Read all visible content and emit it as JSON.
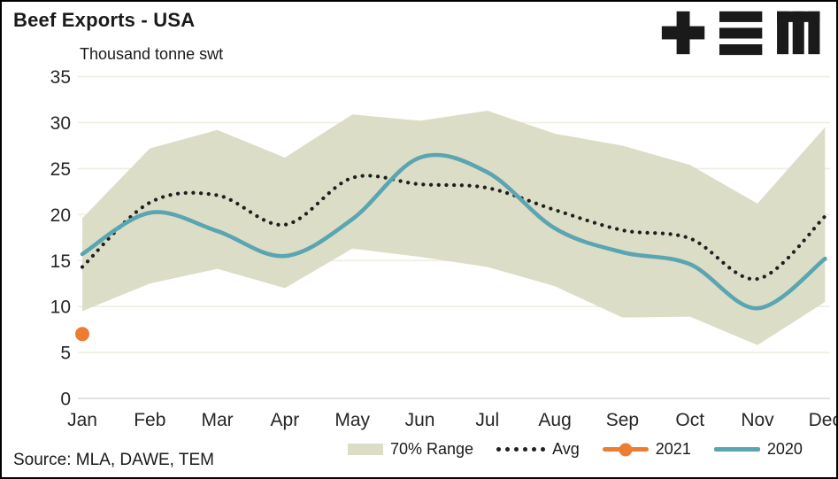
{
  "header": {
    "title": "Beef Exports - USA",
    "logo_name": "TEM"
  },
  "chart_data": {
    "type": "line",
    "title": "Beef Exports - USA",
    "subtitle": "Thousand tonne swt",
    "ylabel": "Thousand tonne swt",
    "ylim": [
      0,
      35
    ],
    "yticks": [
      0,
      5,
      10,
      15,
      20,
      25,
      30,
      35
    ],
    "grid": true,
    "legend_position": "bottom",
    "categories": [
      "Jan",
      "Feb",
      "Mar",
      "Apr",
      "May",
      "Jun",
      "Jul",
      "Aug",
      "Sep",
      "Oct",
      "Nov",
      "Dec"
    ],
    "series": [
      {
        "name": "70% Range",
        "type": "band",
        "color": "#dcddc7",
        "low": [
          9.5,
          12.5,
          14.1,
          12.0,
          16.3,
          15.4,
          14.3,
          12.2,
          8.8,
          8.9,
          5.8,
          10.5
        ],
        "high": [
          19.6,
          27.2,
          29.2,
          26.2,
          30.9,
          30.2,
          31.3,
          28.8,
          27.5,
          25.4,
          21.2,
          29.5
        ]
      },
      {
        "name": "Avg",
        "type": "dotted-line",
        "color": "#1f1f1f",
        "values": [
          14.3,
          21.3,
          22.1,
          18.9,
          24.0,
          23.3,
          22.9,
          20.5,
          18.3,
          17.4,
          13.0,
          19.8
        ]
      },
      {
        "name": "2021",
        "type": "point",
        "color": "#ed7d31",
        "values": [
          7.0,
          null,
          null,
          null,
          null,
          null,
          null,
          null,
          null,
          null,
          null,
          null
        ]
      },
      {
        "name": "2020",
        "type": "line",
        "color": "#5aa5b2",
        "values": [
          15.7,
          20.2,
          18.2,
          15.5,
          19.5,
          26.2,
          24.6,
          18.5,
          15.9,
          14.6,
          9.8,
          15.2
        ]
      }
    ],
    "colors": {
      "grid": "#efeee0",
      "axis": "#d9d9d9",
      "tick_text": "#262626"
    }
  },
  "source": {
    "text": "Source: MLA, DAWE, TEM"
  }
}
